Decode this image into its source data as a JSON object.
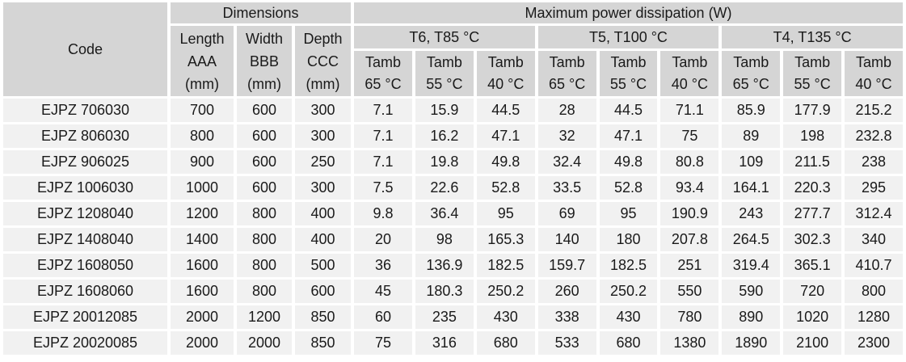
{
  "colors": {
    "header_bg": "#d5d5d5",
    "row_bg": "#f1f1f1",
    "gap": "#ffffff",
    "text": "#1a1a1a"
  },
  "table": {
    "header": {
      "code_label": "Code",
      "dimensions_label": "Dimensions",
      "power_label": "Maximum power dissipation (W)",
      "dim_columns": [
        {
          "l1": "Length",
          "l2": "AAA",
          "l3": "(mm)"
        },
        {
          "l1": "Width",
          "l2": "BBB",
          "l3": "(mm)"
        },
        {
          "l1": "Depth",
          "l2": "CCC",
          "l3": "(mm)"
        }
      ],
      "temp_groups": [
        "T6, T85 °C",
        "T5, T100 °C",
        "T4, T135 °C"
      ],
      "tamb_columns": [
        {
          "top": "Tamb",
          "bottom": "65 °C"
        },
        {
          "top": "Tamb",
          "bottom": "55 °C"
        },
        {
          "top": "Tamb",
          "bottom": "40 °C"
        },
        {
          "top": "Tamb",
          "bottom": "65 °C"
        },
        {
          "top": "Tamb",
          "bottom": "55 °C"
        },
        {
          "top": "Tamb",
          "bottom": "40 °C"
        },
        {
          "top": "Tamb",
          "bottom": "65 °C"
        },
        {
          "top": "Tamb",
          "bottom": "55 °C"
        },
        {
          "top": "Tamb",
          "bottom": "40 °C"
        }
      ]
    },
    "rows": [
      {
        "code": "EJPZ 706030",
        "length": "700",
        "width": "600",
        "depth": "300",
        "values": [
          "7.1",
          "15.9",
          "44.5",
          "28",
          "44.5",
          "71.1",
          "85.9",
          "177.9",
          "215.2"
        ]
      },
      {
        "code": "EJPZ 806030",
        "length": "800",
        "width": "600",
        "depth": "300",
        "values": [
          "7.1",
          "16.2",
          "47.1",
          "32",
          "47.1",
          "75",
          "89",
          "198",
          "232.8"
        ]
      },
      {
        "code": "EJPZ 906025",
        "length": "900",
        "width": "600",
        "depth": "250",
        "values": [
          "7.1",
          "19.8",
          "49.8",
          "32.4",
          "49.8",
          "80.8",
          "109",
          "211.5",
          "238"
        ]
      },
      {
        "code": "EJPZ 1006030",
        "length": "1000",
        "width": "600",
        "depth": "300",
        "values": [
          "7.5",
          "22.6",
          "52.8",
          "33.5",
          "52.8",
          "93.4",
          "164.1",
          "220.3",
          "295"
        ]
      },
      {
        "code": "EJPZ 1208040",
        "length": "1200",
        "width": "800",
        "depth": "400",
        "values": [
          "9.8",
          "36.4",
          "95",
          "69",
          "95",
          "190.9",
          "243",
          "277.7",
          "312.4"
        ]
      },
      {
        "code": "EJPZ 1408040",
        "length": "1400",
        "width": "800",
        "depth": "400",
        "values": [
          "20",
          "98",
          "165.3",
          "140",
          "180",
          "207.8",
          "264.5",
          "302.3",
          "340"
        ]
      },
      {
        "code": "EJPZ 1608050",
        "length": "1600",
        "width": "800",
        "depth": "500",
        "values": [
          "36",
          "136.9",
          "182.5",
          "159.7",
          "182.5",
          "251",
          "319.4",
          "365.1",
          "410.7"
        ]
      },
      {
        "code": "EJPZ 1608060",
        "length": "1600",
        "width": "800",
        "depth": "600",
        "values": [
          "45",
          "180.3",
          "250.2",
          "260",
          "250.2",
          "550",
          "590",
          "720",
          "800"
        ]
      },
      {
        "code": "EJPZ 20012085",
        "length": "2000",
        "width": "1200",
        "depth": "850",
        "values": [
          "60",
          "235",
          "430",
          "338",
          "430",
          "780",
          "890",
          "1020",
          "1280"
        ]
      },
      {
        "code": "EJPZ 20020085",
        "length": "2000",
        "width": "2000",
        "depth": "850",
        "values": [
          "75",
          "316",
          "680",
          "533",
          "680",
          "1380",
          "1890",
          "2100",
          "2300"
        ]
      }
    ]
  }
}
